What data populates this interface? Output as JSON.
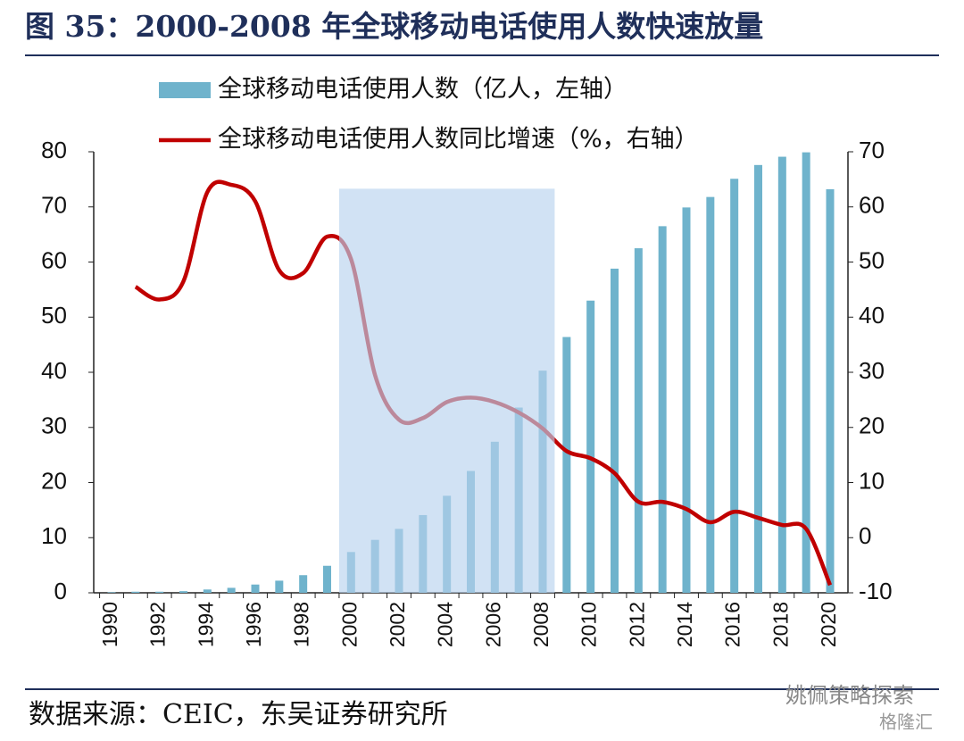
{
  "chart_data": {
    "type": "bar_line",
    "title": "图 35：2000-2008 年全球移动电话使用人数快速放量",
    "categories": [
      "1990",
      null,
      "1992",
      null,
      "1994",
      null,
      "1996",
      null,
      "1998",
      null,
      "2000",
      null,
      "2002",
      null,
      "2004",
      null,
      "2006",
      null,
      "2008",
      null,
      "2010",
      null,
      "2012",
      null,
      "2014",
      null,
      "2016",
      null,
      "2018",
      null,
      "2020"
    ],
    "series": [
      {
        "name": "全球移动电话使用人数（亿人，左轴）",
        "type": "bar",
        "color": "#6fb3cc",
        "values": [
          0.1,
          0.2,
          0.2,
          0.3,
          0.6,
          0.9,
          1.5,
          2.2,
          3.2,
          4.9,
          7.4,
          9.6,
          11.6,
          14.1,
          17.6,
          22.1,
          27.4,
          33.6,
          40.3,
          46.4,
          53.0,
          58.8,
          62.5,
          66.5,
          69.9,
          71.8,
          75.1,
          77.6,
          79.1,
          79.9,
          73.2
        ]
      },
      {
        "name": "全球移动电话使用人数同比增速（%，右轴）",
        "type": "line",
        "axis": "y2",
        "color": "#c00000",
        "values": [
          null,
          45.5,
          43.2,
          46.5,
          62.7,
          64.0,
          61.0,
          48.5,
          48.0,
          54.6,
          50.5,
          29.5,
          21.4,
          21.7,
          24.6,
          25.4,
          24.6,
          22.7,
          19.8,
          15.7,
          14.4,
          11.7,
          6.5,
          6.5,
          5.2,
          2.8,
          4.7,
          3.6,
          2.3,
          1.6,
          -8.6
        ]
      }
    ],
    "ylim": [
      0,
      80
    ],
    "yticks": [
      0,
      10,
      20,
      30,
      40,
      50,
      60,
      70,
      80
    ],
    "y2lim": [
      -10,
      70
    ],
    "y2ticks": [
      -10,
      0,
      10,
      20,
      30,
      40,
      50,
      60,
      70
    ],
    "highlight": {
      "from": "2000",
      "to": "2008",
      "top": 73.3,
      "color": "#b8d3ee"
    },
    "source": "数据来源：CEIC，东吴证券研究所",
    "watermark": "姚佩策略探索",
    "watermark2": "格隆汇"
  }
}
